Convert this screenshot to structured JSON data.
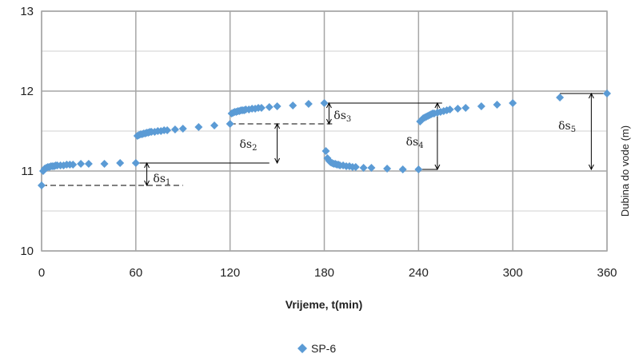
{
  "chart_data": {
    "type": "scatter",
    "xlabel": "Vrijeme, t(min)",
    "ylabel": "Dubina do vode (m)",
    "xlim": [
      0,
      360
    ],
    "ylim": [
      10,
      13
    ],
    "xticks": [
      "0",
      "60",
      "120",
      "180",
      "240",
      "300",
      "360"
    ],
    "yticks": [
      "10",
      "11",
      "12",
      "13"
    ],
    "grid": true,
    "legend_position": "bottom-center",
    "marker": "diamond",
    "series_color": "#5b9bd5",
    "series": [
      {
        "name": "SP-6",
        "x": [
          0,
          1,
          2,
          3,
          4,
          5,
          6,
          7,
          8,
          9,
          10,
          12,
          14,
          16,
          18,
          20,
          25,
          30,
          40,
          50,
          60,
          61,
          62,
          63,
          64,
          65,
          66,
          67,
          68,
          69,
          70,
          72,
          74,
          76,
          78,
          80,
          85,
          90,
          100,
          110,
          120,
          121,
          122,
          123,
          124,
          125,
          126,
          127,
          128,
          129,
          130,
          132,
          134,
          136,
          138,
          140,
          145,
          150,
          160,
          170,
          180,
          181,
          182,
          183,
          184,
          185,
          186,
          187,
          188,
          189,
          190,
          192,
          194,
          196,
          198,
          200,
          205,
          210,
          220,
          230,
          240,
          241,
          242,
          243,
          244,
          245,
          246,
          247,
          248,
          249,
          250,
          252,
          254,
          256,
          258,
          260,
          265,
          270,
          280,
          290,
          300,
          330,
          360
        ],
        "y": [
          10.82,
          11.0,
          11.03,
          11.04,
          11.05,
          11.05,
          11.06,
          11.06,
          11.06,
          11.07,
          11.07,
          11.07,
          11.07,
          11.08,
          11.08,
          11.08,
          11.09,
          11.09,
          11.09,
          11.1,
          11.1,
          11.44,
          11.45,
          11.46,
          11.46,
          11.47,
          11.47,
          11.48,
          11.48,
          11.49,
          11.49,
          11.49,
          11.5,
          11.5,
          11.51,
          11.51,
          11.52,
          11.53,
          11.55,
          11.57,
          11.59,
          11.72,
          11.73,
          11.74,
          11.74,
          11.75,
          11.75,
          11.76,
          11.76,
          11.76,
          11.77,
          11.77,
          11.78,
          11.78,
          11.79,
          11.79,
          11.8,
          11.81,
          11.82,
          11.84,
          11.85,
          11.25,
          11.16,
          11.13,
          11.11,
          11.1,
          11.09,
          11.09,
          11.08,
          11.08,
          11.07,
          11.07,
          11.06,
          11.06,
          11.05,
          11.05,
          11.04,
          11.04,
          11.03,
          11.02,
          11.02,
          11.62,
          11.64,
          11.66,
          11.67,
          11.68,
          11.69,
          11.7,
          11.71,
          11.72,
          11.72,
          11.73,
          11.74,
          11.75,
          11.76,
          11.77,
          11.78,
          11.79,
          11.81,
          11.83,
          11.85,
          11.92,
          11.97
        ]
      }
    ],
    "annotations": [
      {
        "label": "δs",
        "sub": "1"
      },
      {
        "label": "δs",
        "sub": "2"
      },
      {
        "label": "δs",
        "sub": "3"
      },
      {
        "label": "δs",
        "sub": "4"
      },
      {
        "label": "δs",
        "sub": "5"
      }
    ]
  }
}
